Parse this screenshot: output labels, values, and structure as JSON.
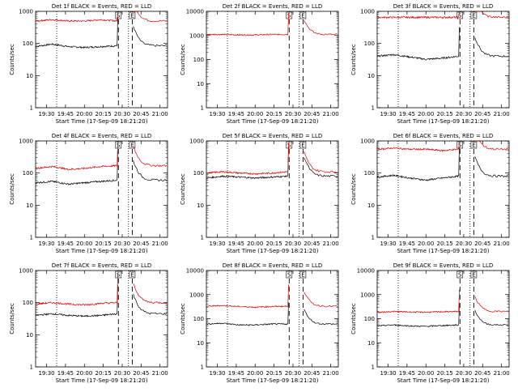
{
  "x_ticks": [
    "19:30",
    "19:45",
    "20:00",
    "20:15",
    "20:30",
    "20:45",
    "21:00"
  ],
  "xlabel": "Start Time (17-Sep-09 18:21:20)",
  "ylabel": "Counts/sec",
  "chart_data": [
    {
      "type": "line",
      "title": "Det 1f BLACK = Events, RED = LLD",
      "ylog": true,
      "ylim": [
        1,
        1000
      ],
      "y_ticks": [
        "1",
        "10",
        "100",
        "1000"
      ],
      "marker_labels": [
        "S",
        "E"
      ],
      "series": [
        {
          "name": "Events",
          "color": "#000000",
          "base": [
            80,
            95,
            80,
            75,
            80,
            85
          ]
        },
        {
          "name": "LLD",
          "color": "#dd0000",
          "base": [
            500,
            550,
            500,
            500,
            550,
            500
          ]
        }
      ]
    },
    {
      "type": "line",
      "title": "Det 2f BLACK = Events, RED = LLD",
      "ylog": true,
      "ylim": [
        1,
        10000
      ],
      "y_ticks": [
        "1",
        "10",
        "100",
        "1000",
        "10000"
      ],
      "marker_labels": [
        "S",
        "E"
      ],
      "series": [
        {
          "name": "Events",
          "color": "#000000",
          "base": [
            null,
            null,
            null,
            null,
            null,
            null
          ]
        },
        {
          "name": "LLD",
          "color": "#dd0000",
          "base": [
            1100,
            1100,
            1050,
            1050,
            1100,
            1100
          ]
        }
      ]
    },
    {
      "type": "line",
      "title": "Det 3f BLACK = Events, RED = LLD",
      "ylog": true,
      "ylim": [
        1,
        1000
      ],
      "y_ticks": [
        "1",
        "10",
        "100",
        "1000"
      ],
      "marker_labels": [
        "S",
        "E"
      ],
      "series": [
        {
          "name": "Events",
          "color": "#000000",
          "base": [
            40,
            45,
            38,
            32,
            35,
            40
          ]
        },
        {
          "name": "LLD",
          "color": "#dd0000",
          "base": [
            650,
            650,
            650,
            650,
            650,
            650
          ]
        }
      ]
    },
    {
      "type": "line",
      "title": "Det 4f BLACK = Events, RED = LLD",
      "ylog": true,
      "ylim": [
        1,
        1000
      ],
      "y_ticks": [
        "1",
        "10",
        "100",
        "1000"
      ],
      "marker_labels": [
        "S",
        "E"
      ],
      "series": [
        {
          "name": "Events",
          "color": "#000000",
          "base": [
            50,
            55,
            45,
            50,
            55,
            60
          ]
        },
        {
          "name": "LLD",
          "color": "#dd0000",
          "base": [
            140,
            160,
            130,
            140,
            160,
            170
          ]
        }
      ]
    },
    {
      "type": "line",
      "title": "Det 5f BLACK = Events, RED = LLD",
      "ylog": true,
      "ylim": [
        1,
        1000
      ],
      "y_ticks": [
        "1",
        "10",
        "100",
        "1000"
      ],
      "marker_labels": [
        "S",
        "E"
      ],
      "series": [
        {
          "name": "Events",
          "color": "#000000",
          "base": [
            70,
            80,
            75,
            70,
            75,
            80
          ]
        },
        {
          "name": "LLD",
          "color": "#dd0000",
          "base": [
            100,
            110,
            100,
            95,
            100,
            110
          ]
        }
      ]
    },
    {
      "type": "line",
      "title": "Det 6f BLACK = Events, RED = LLD",
      "ylog": true,
      "ylim": [
        1,
        1000
      ],
      "y_ticks": [
        "1",
        "10",
        "100",
        "1000"
      ],
      "marker_labels": [
        "S",
        "E"
      ],
      "series": [
        {
          "name": "Events",
          "color": "#000000",
          "base": [
            75,
            85,
            70,
            60,
            70,
            80
          ]
        },
        {
          "name": "LLD",
          "color": "#dd0000",
          "base": [
            550,
            600,
            550,
            550,
            500,
            550
          ]
        }
      ]
    },
    {
      "type": "line",
      "title": "Det 7f BLACK = Events, RED = LLD",
      "ylog": true,
      "ylim": [
        1,
        1000
      ],
      "y_ticks": [
        "1",
        "10",
        "100",
        "1000"
      ],
      "marker_labels": [
        "S",
        "E"
      ],
      "series": [
        {
          "name": "Events",
          "color": "#000000",
          "base": [
            40,
            45,
            40,
            38,
            40,
            45
          ]
        },
        {
          "name": "LLD",
          "color": "#dd0000",
          "base": [
            90,
            100,
            90,
            85,
            95,
            100
          ]
        }
      ]
    },
    {
      "type": "line",
      "title": "Det 8f BLACK = Events, RED = LLD",
      "ylog": true,
      "ylim": [
        1,
        10000
      ],
      "y_ticks": [
        "1",
        "10",
        "100",
        "1000",
        "10000"
      ],
      "marker_labels": [
        "S",
        "E"
      ],
      "series": [
        {
          "name": "Events",
          "color": "#000000",
          "base": [
            60,
            65,
            55,
            55,
            60,
            60
          ]
        },
        {
          "name": "LLD",
          "color": "#dd0000",
          "base": [
            330,
            350,
            320,
            300,
            320,
            330
          ]
        }
      ]
    },
    {
      "type": "line",
      "title": "Det 9f BLACK = Events, RED = LLD",
      "ylog": true,
      "ylim": [
        1,
        10000
      ],
      "y_ticks": [
        "1",
        "10",
        "100",
        "1000",
        "10000"
      ],
      "marker_labels": [
        "S",
        "E"
      ],
      "series": [
        {
          "name": "Events",
          "color": "#000000",
          "base": [
            50,
            55,
            50,
            48,
            52,
            55
          ]
        },
        {
          "name": "LLD",
          "color": "#dd0000",
          "base": [
            180,
            200,
            190,
            185,
            195,
            200
          ]
        }
      ]
    }
  ]
}
